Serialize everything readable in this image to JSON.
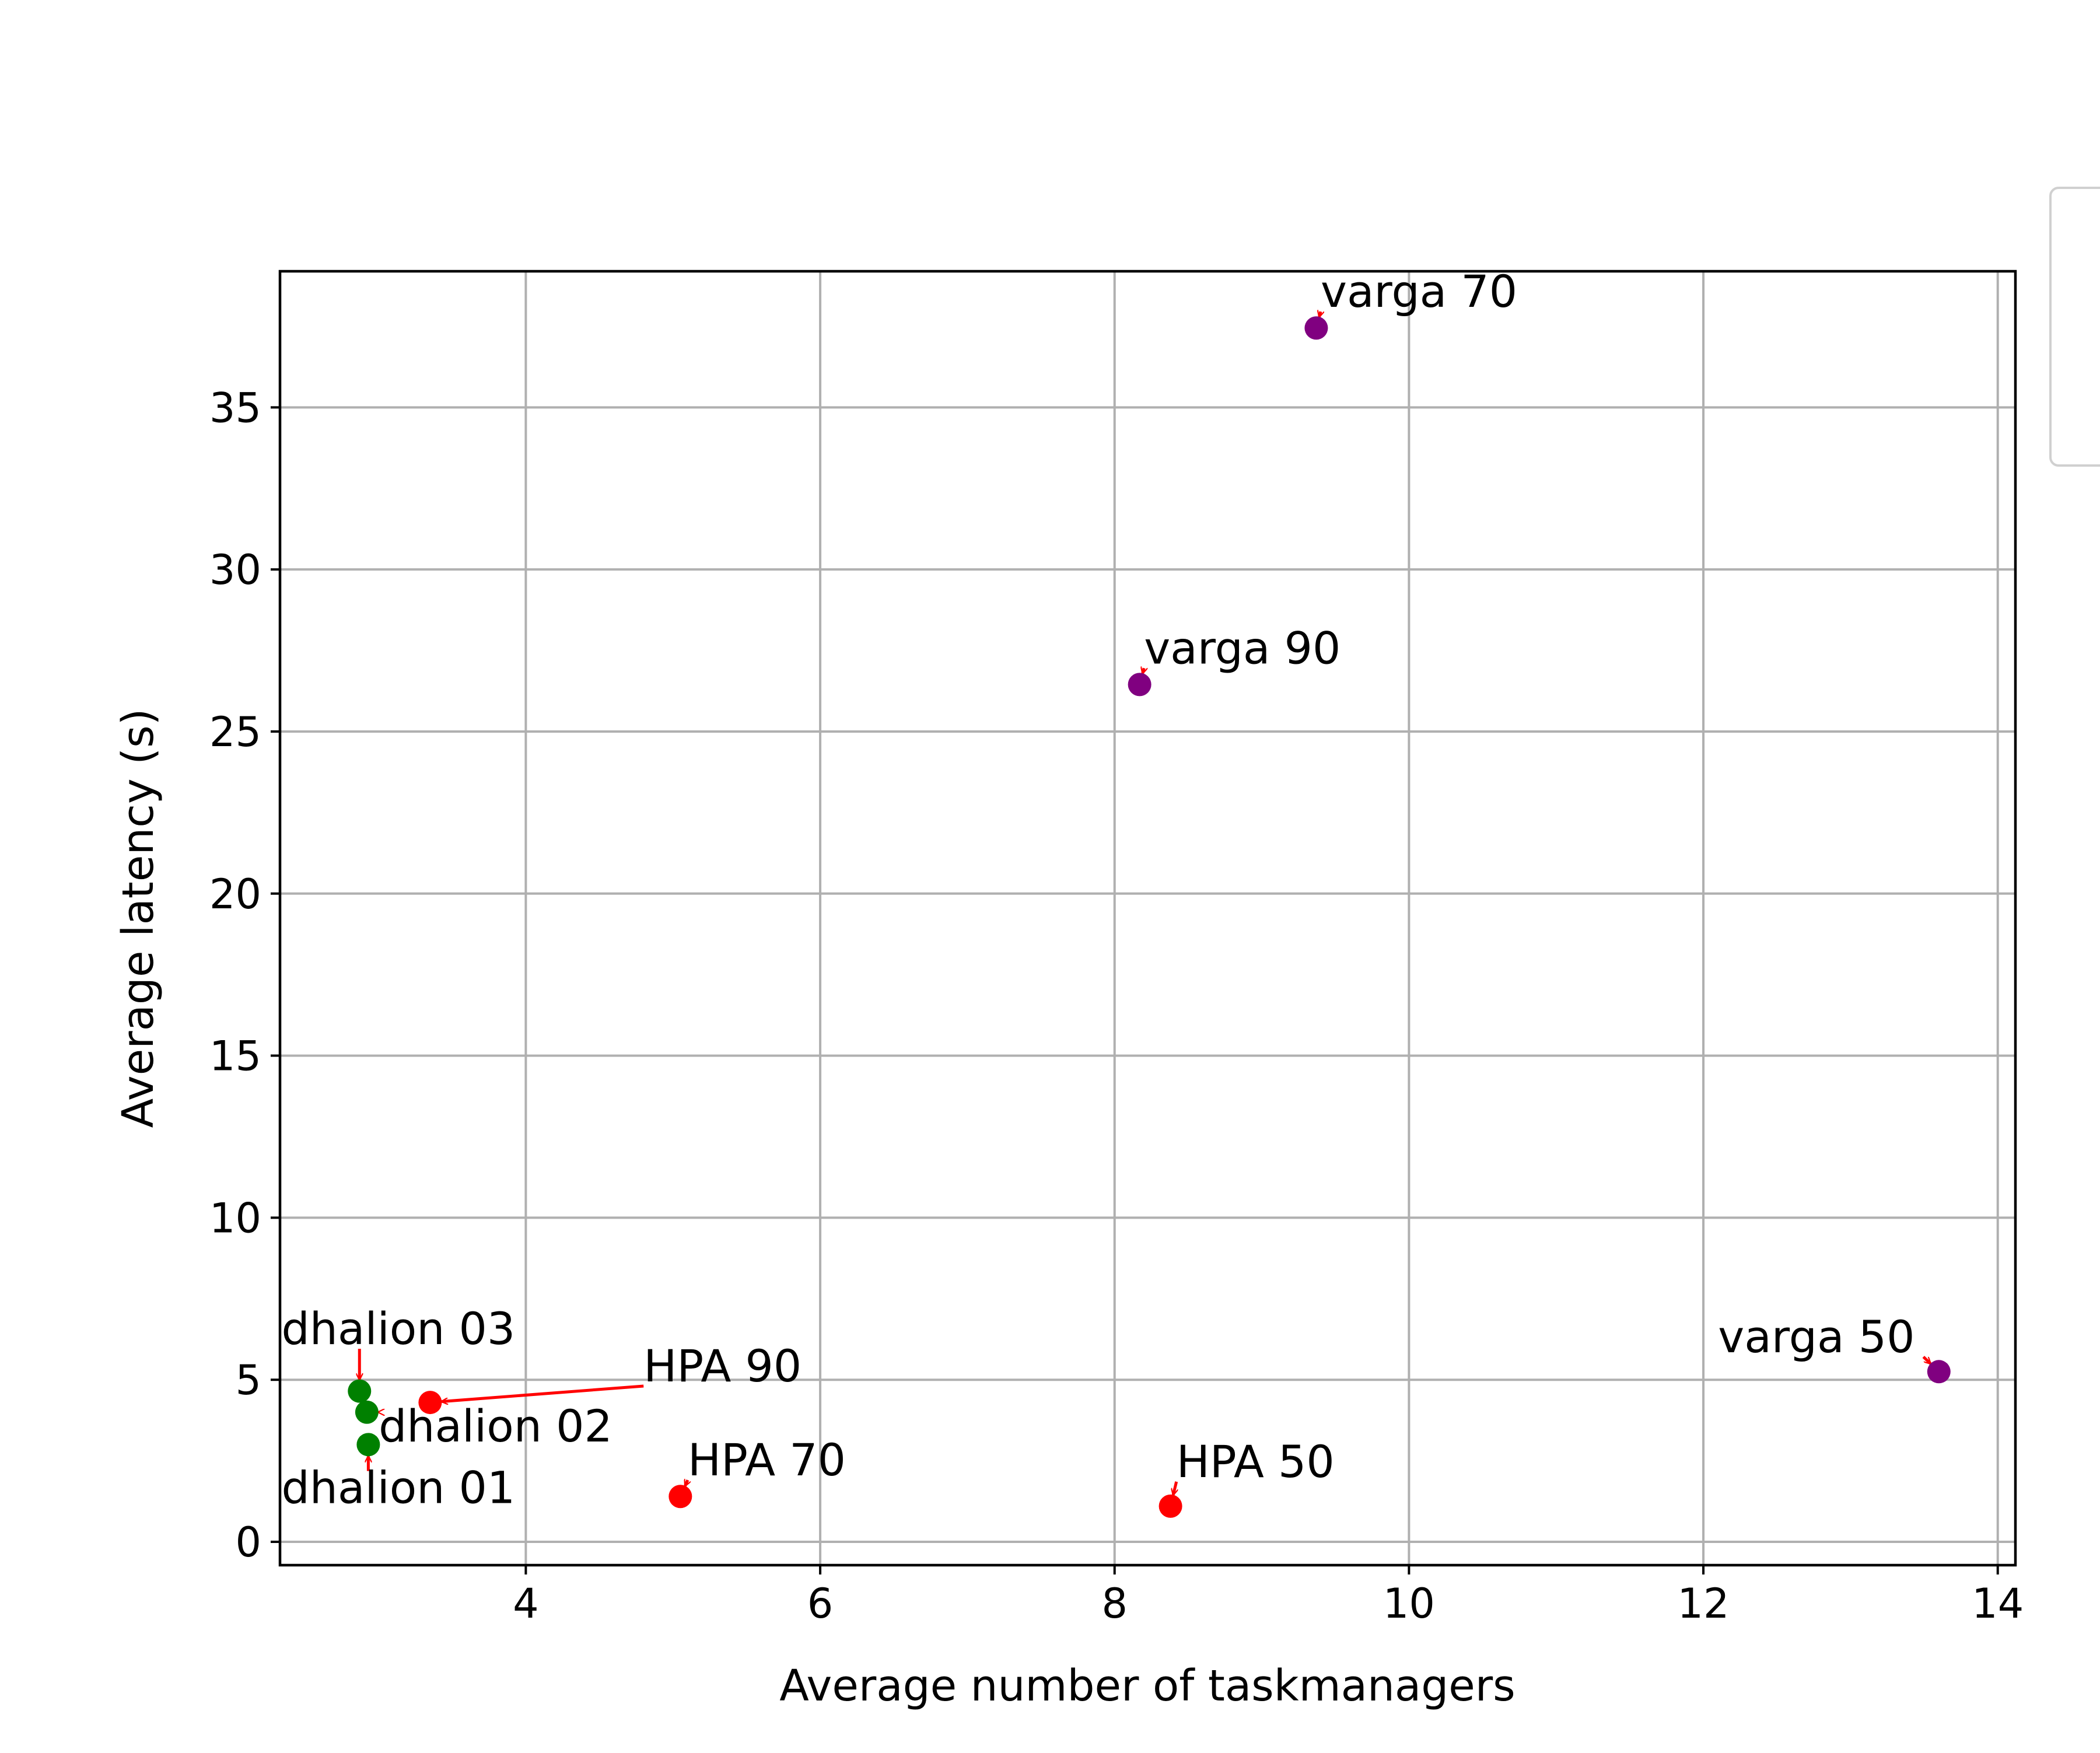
{
  "chart_data": {
    "type": "scatter",
    "title": "",
    "xlabel": "Average number of taskmanagers",
    "ylabel": "Average latency (s)",
    "xlim": [
      2.33,
      14.12
    ],
    "ylim": [
      -0.72,
      39.2
    ],
    "xticks": [
      4,
      6,
      8,
      10,
      12,
      14
    ],
    "yticks": [
      0,
      5,
      10,
      15,
      20,
      25,
      30,
      35
    ],
    "grid": true,
    "annotation_arrow_color": "#ff0000",
    "points": [
      {
        "label": "varga 70",
        "x": 9.37,
        "y": 37.45,
        "color": "#800080",
        "label_x": 9.4,
        "label_y": 38.1
      },
      {
        "label": "varga 90",
        "x": 8.17,
        "y": 26.45,
        "color": "#800080",
        "label_x": 8.2,
        "label_y": 27.1
      },
      {
        "label": "varga 50",
        "x": 13.6,
        "y": 5.25,
        "color": "#800080",
        "label_x": 12.1,
        "label_y": 5.85
      },
      {
        "label": "HPA 90",
        "x": 3.35,
        "y": 4.3,
        "color": "#ff0000",
        "label_x": 4.8,
        "label_y": 4.95
      },
      {
        "label": "HPA 70",
        "x": 5.05,
        "y": 1.4,
        "color": "#ff0000",
        "label_x": 5.1,
        "label_y": 2.05
      },
      {
        "label": "HPA 50",
        "x": 8.38,
        "y": 1.1,
        "color": "#ff0000",
        "label_x": 8.42,
        "label_y": 2.0
      },
      {
        "label": "dhalion 03",
        "x": 2.87,
        "y": 4.65,
        "color": "#008000",
        "label_x": 2.34,
        "label_y": 6.1
      },
      {
        "label": "dhalion 02",
        "x": 2.92,
        "y": 4.0,
        "color": "#008000",
        "label_x": 3.0,
        "label_y": 3.1
      },
      {
        "label": "dhalion 01",
        "x": 2.93,
        "y": 3.0,
        "color": "#008000",
        "label_x": 2.34,
        "label_y": 1.2
      }
    ]
  }
}
